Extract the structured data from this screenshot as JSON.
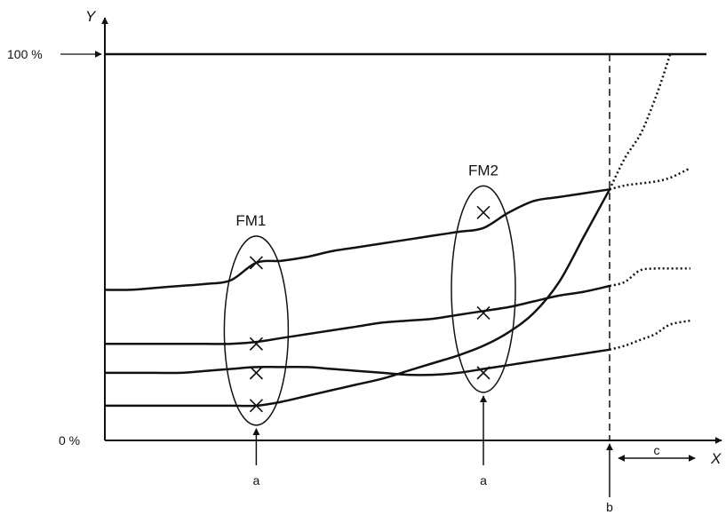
{
  "chart_data": {
    "type": "line",
    "title": "",
    "xlabel": "X",
    "ylabel": "Y",
    "x": [
      0,
      5,
      10,
      15,
      20,
      25,
      30,
      35,
      40,
      45,
      50,
      55,
      60,
      65,
      70,
      75,
      80,
      85,
      90,
      95,
      100
    ],
    "ylim": [
      0,
      100
    ],
    "y_ticks": [
      "0 %",
      "100 %"
    ],
    "grid": false,
    "legend": "none",
    "series": [
      {
        "values": [
          39,
          39,
          39.5,
          40,
          40.5,
          41.5,
          46,
          46.5,
          47.5,
          49,
          50,
          51,
          52,
          53,
          54,
          55,
          59,
          62,
          63,
          64,
          65
        ]
      },
      {
        "values": [
          25,
          25,
          25,
          25,
          25,
          25,
          25.5,
          26.5,
          27.5,
          28.5,
          29.5,
          30.5,
          31,
          31.5,
          32.5,
          33.5,
          34.5,
          36,
          37.5,
          38.5,
          40
        ]
      },
      {
        "values": [
          17.5,
          17.5,
          17.5,
          17.5,
          18,
          18.5,
          19,
          19,
          19,
          18.5,
          18,
          17.5,
          17,
          17,
          17.5,
          18.5,
          19.5,
          20.5,
          21.5,
          22.5,
          23.5
        ]
      },
      {
        "values": [
          9,
          9,
          9,
          9,
          9,
          9,
          9,
          10,
          11.5,
          13,
          14.5,
          16,
          18,
          20,
          22,
          24.5,
          28,
          33,
          41,
          53,
          65
        ]
      }
    ],
    "extrapolated": [
      {
        "x": [
          100,
          103,
          106,
          108,
          110,
          112
        ],
        "values": [
          65,
          73,
          79,
          85,
          92,
          100
        ]
      },
      {
        "x": [
          100,
          103,
          106,
          109,
          112,
          116
        ],
        "values": [
          65,
          66,
          66.5,
          67,
          68,
          70.5
        ]
      },
      {
        "x": [
          100,
          103,
          106,
          109,
          112,
          116
        ],
        "values": [
          40,
          41,
          44,
          44.5,
          44.5,
          44.5
        ]
      },
      {
        "x": [
          100,
          103,
          106,
          109,
          112,
          116
        ],
        "values": [
          23.5,
          24.5,
          26,
          27.5,
          30,
          31
        ]
      }
    ],
    "groups": [
      {
        "label": "FM1",
        "x": 30,
        "markers": [
          46,
          25,
          17.5,
          9
        ],
        "arrow_label": "a"
      },
      {
        "label": "FM2",
        "x": 75,
        "markers": [
          59,
          33,
          17.5
        ],
        "arrow_label": "a"
      }
    ],
    "vline": {
      "x": 100,
      "label": "b"
    },
    "interval": {
      "label": "c"
    }
  }
}
